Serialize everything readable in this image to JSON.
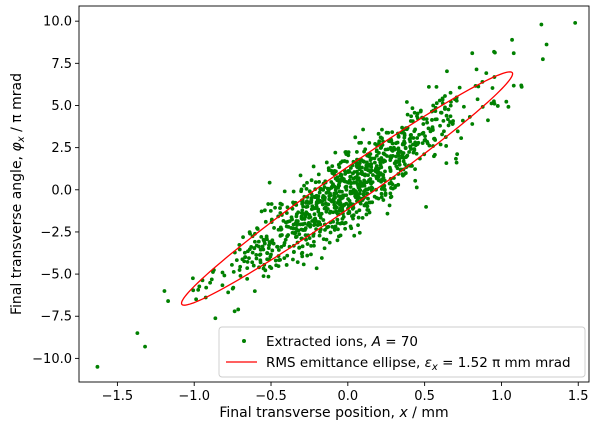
{
  "chart_data": {
    "type": "scatter",
    "xlabel": "Final transverse position, x / mm",
    "ylabel": "Final transverse angle, φx / π mrad",
    "xlim": [
      -1.75,
      1.57
    ],
    "ylim": [
      -11.4,
      10.9
    ],
    "xticks": [
      -1.5,
      -1.0,
      -0.5,
      0.0,
      0.5,
      1.0,
      1.5
    ],
    "xtick_labels": [
      "−1.5",
      "−1.0",
      "−0.5",
      "0.0",
      "0.5",
      "1.0",
      "1.5"
    ],
    "yticks": [
      -10.0,
      -7.5,
      -5.0,
      -2.5,
      0.0,
      2.5,
      5.0,
      7.5,
      10.0
    ],
    "ytick_labels": [
      "−10.0",
      "−7.5",
      "−5.0",
      "−2.5",
      "0.0",
      "2.5",
      "5.0",
      "7.5",
      "10.0"
    ],
    "grid": false,
    "legend_position": "lower-right",
    "series": [
      {
        "name": "Extracted ions, A = 70",
        "kind": "points",
        "color": "#008000",
        "approx_point_count": 1000,
        "correlation": 0.9,
        "sigma_x_mm": 0.38,
        "sigma_y_mrad": 2.6,
        "notable_points": [
          {
            "x": -1.63,
            "y": -10.5
          },
          {
            "x": -1.37,
            "y": -8.5
          },
          {
            "x": -1.32,
            "y": -9.3
          },
          {
            "x": -1.17,
            "y": -6.6
          },
          {
            "x": 1.26,
            "y": 9.8
          },
          {
            "x": 1.48,
            "y": 9.9
          },
          {
            "x": 1.08,
            "y": 8.1
          },
          {
            "x": 0.81,
            "y": 8.1
          }
        ]
      },
      {
        "name": "RMS emittance ellipse, εx = 1.52 π mm mrad",
        "kind": "ellipse",
        "color": "#ff0000",
        "emittance_pi_mm_mrad": 1.52,
        "x_extent_mm": [
          -1.08,
          1.08
        ],
        "y_extent_mrad": [
          -6.9,
          6.9
        ],
        "extreme_points": [
          {
            "x": -1.08,
            "y": -6.8
          },
          {
            "x": 1.07,
            "y": 6.95
          }
        ]
      }
    ]
  },
  "legend": {
    "scatter_prefix": "Extracted ions, ",
    "scatter_var": "A",
    "scatter_suffix": " = 70",
    "ellipse_prefix": "RMS emittance ellipse, ",
    "ellipse_var": "ε",
    "ellipse_sub": "x",
    "ellipse_suffix": " = 1.52 π mm mrad"
  },
  "axes": {
    "xlabel_text": "Final transverse position, ",
    "xlabel_var": "x",
    "xlabel_unit": " / mm",
    "ylabel_text": "Final transverse angle, ",
    "ylabel_var": "φ",
    "ylabel_sub": "x",
    "ylabel_unit": " / π mrad"
  }
}
